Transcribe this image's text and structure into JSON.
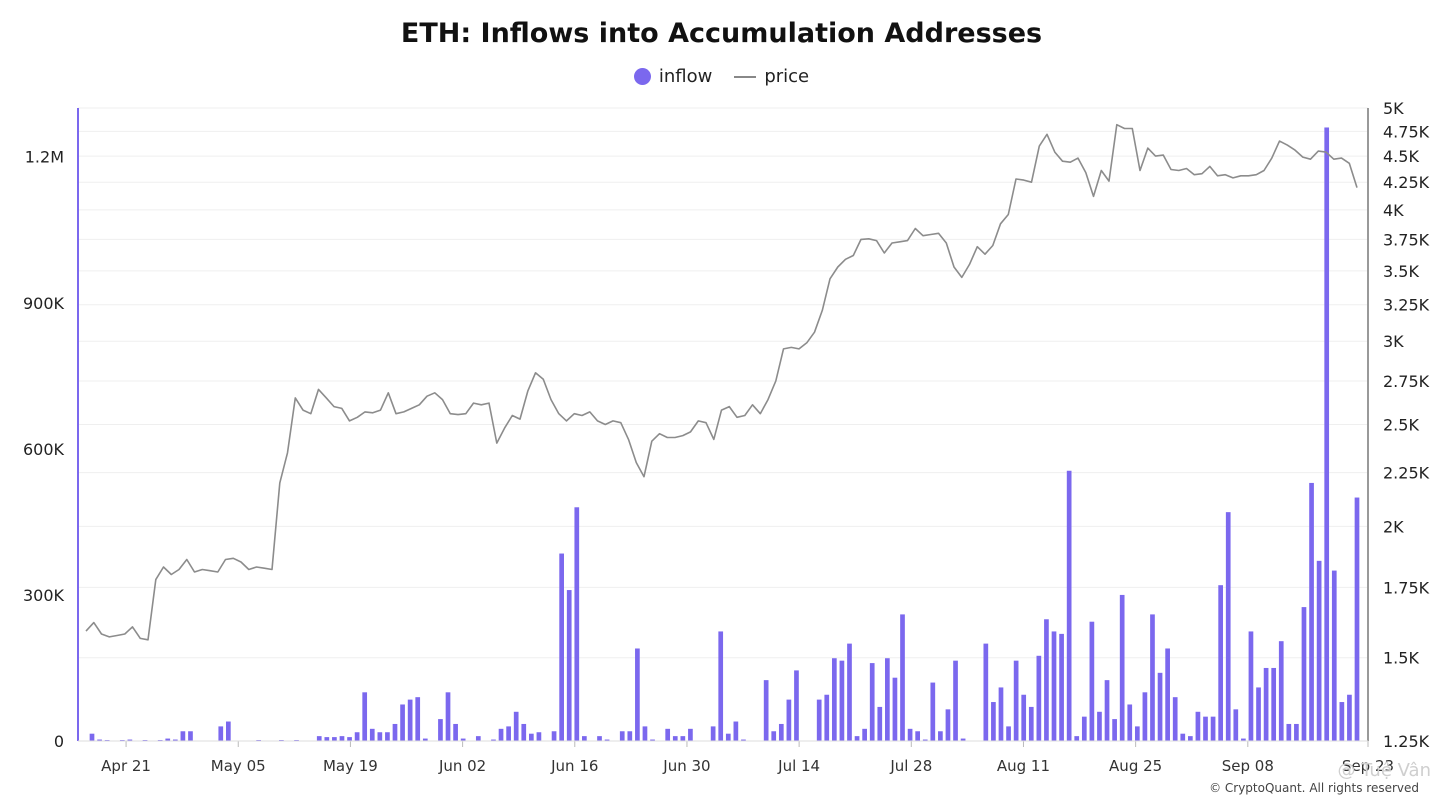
{
  "chart_data": {
    "type": "bar",
    "title": "ETH: Inflows into Accumulation Addresses",
    "legend": {
      "position": "top-center",
      "items": [
        "inflow",
        "price"
      ]
    },
    "grid": true,
    "x_tick_labels": [
      "Apr 21",
      "May 05",
      "May 19",
      "Jun 02",
      "Jun 16",
      "Jun 30",
      "Jul 14",
      "Jul 28",
      "Aug 11",
      "Aug 25",
      "Sep 08",
      "Sep 23"
    ],
    "y_left": {
      "ticks": [
        "0",
        "300K",
        "600K",
        "900K",
        "1.2M"
      ],
      "ylim": [
        0,
        1300000
      ]
    },
    "y_right": {
      "scale": "log",
      "ticks": [
        "1.25K",
        "1.5K",
        "1.75K",
        "2K",
        "2.25K",
        "2.5K",
        "2.75K",
        "3K",
        "3.25K",
        "3.5K",
        "3.75K",
        "4K",
        "4.25K",
        "4.5K",
        "4.75K",
        "5K"
      ],
      "ylim": [
        1250,
        5000
      ]
    },
    "x_range": {
      "start": "2025-04-15",
      "end": "2025-09-23"
    },
    "series": [
      {
        "name": "inflow",
        "type": "bar",
        "color": "#7B68EE",
        "values": [
          15000,
          3000,
          2000,
          1000,
          2000,
          3000,
          1000,
          2000,
          1000,
          2000,
          5000,
          3000,
          20000,
          20000,
          0,
          0,
          0,
          30000,
          40000,
          0,
          0,
          0,
          2000,
          0,
          0,
          2000,
          0,
          2000,
          0,
          0,
          10000,
          8000,
          8000,
          10000,
          8000,
          18000,
          100000,
          25000,
          18000,
          18000,
          35000,
          75000,
          85000,
          90000,
          5000,
          0,
          45000,
          100000,
          35000,
          5000,
          0,
          10000,
          0,
          3000,
          25000,
          30000,
          60000,
          35000,
          15000,
          18000,
          0,
          20000,
          385000,
          310000,
          480000,
          10000,
          0,
          10000,
          3000,
          0,
          20000,
          20000,
          190000,
          30000,
          3000,
          0,
          25000,
          10000,
          10000,
          25000,
          0,
          0,
          30000,
          225000,
          15000,
          40000,
          3000,
          0,
          0,
          125000,
          20000,
          35000,
          85000,
          145000,
          0,
          0,
          85000,
          95000,
          170000,
          165000,
          200000,
          10000,
          25000,
          160000,
          70000,
          170000,
          130000,
          260000,
          25000,
          20000,
          3000,
          120000,
          20000,
          65000,
          165000,
          5000,
          0,
          0,
          200000,
          80000,
          110000,
          30000,
          165000,
          95000,
          70000,
          175000,
          250000,
          225000,
          220000,
          555000,
          10000,
          50000,
          245000,
          60000,
          125000,
          45000,
          300000,
          75000,
          30000,
          100000,
          260000,
          140000,
          190000,
          90000,
          15000,
          10000,
          60000,
          50000,
          50000,
          320000,
          470000,
          65000,
          5000,
          225000,
          110000,
          150000,
          150000,
          205000,
          35000,
          35000,
          275000,
          530000,
          370000,
          1260000,
          350000,
          80000,
          95000,
          500000
        ]
      },
      {
        "name": "price",
        "type": "line",
        "color": "#8c8c8c",
        "values": [
          1590,
          1620,
          1580,
          1570,
          1575,
          1580,
          1605,
          1565,
          1560,
          1780,
          1830,
          1800,
          1820,
          1860,
          1810,
          1820,
          1815,
          1810,
          1860,
          1865,
          1850,
          1820,
          1830,
          1825,
          1820,
          2200,
          2350,
          2650,
          2580,
          2560,
          2700,
          2650,
          2600,
          2590,
          2520,
          2540,
          2570,
          2565,
          2580,
          2680,
          2560,
          2570,
          2590,
          2610,
          2660,
          2680,
          2640,
          2560,
          2555,
          2560,
          2620,
          2610,
          2620,
          2400,
          2480,
          2550,
          2530,
          2690,
          2800,
          2760,
          2640,
          2560,
          2520,
          2560,
          2550,
          2570,
          2520,
          2500,
          2520,
          2510,
          2420,
          2300,
          2230,
          2410,
          2450,
          2430,
          2430,
          2440,
          2460,
          2520,
          2510,
          2420,
          2580,
          2600,
          2540,
          2550,
          2610,
          2560,
          2640,
          2750,
          2950,
          2960,
          2950,
          2990,
          3060,
          3210,
          3440,
          3530,
          3590,
          3620,
          3750,
          3755,
          3740,
          3640,
          3720,
          3730,
          3740,
          3840,
          3780,
          3790,
          3800,
          3720,
          3530,
          3450,
          3550,
          3690,
          3630,
          3700,
          3880,
          3960,
          4280,
          4270,
          4250,
          4600,
          4720,
          4540,
          4450,
          4440,
          4480,
          4340,
          4120,
          4360,
          4260,
          4820,
          4780,
          4780,
          4360,
          4580,
          4500,
          4510,
          4370,
          4360,
          4380,
          4320,
          4330,
          4400,
          4310,
          4320,
          4290,
          4310,
          4310,
          4320,
          4360,
          4480,
          4650,
          4610,
          4560,
          4490,
          4470,
          4550,
          4540,
          4470,
          4480,
          4430,
          4200
        ]
      }
    ]
  },
  "footer": "© CryptoQuant. All rights reserved",
  "ghost_watermark": "@ Tuệ Vân"
}
